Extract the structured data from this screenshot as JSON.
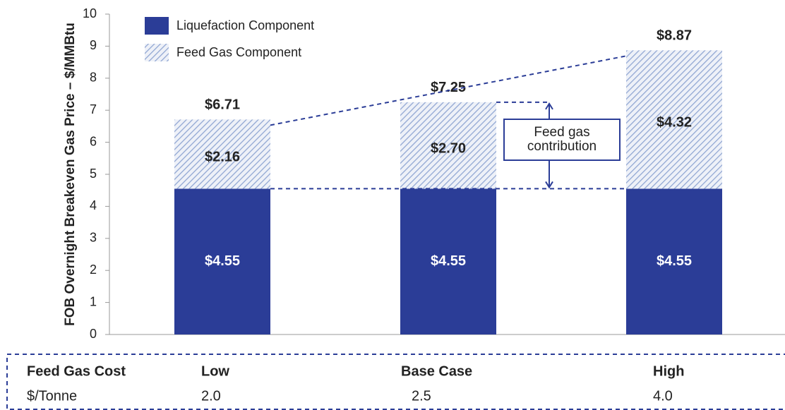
{
  "chart_data": {
    "type": "stacked_bar",
    "y_label": "FOB Overnight Breakeven Gas Price – $/MMBtu",
    "categories": [
      "Low",
      "Base Case",
      "High"
    ],
    "series": [
      {
        "name": "Liquefaction Component",
        "color": "#2b3d97",
        "values": [
          4.55,
          4.55,
          4.55
        ],
        "value_labels": [
          "$4.55",
          "$4.55",
          "$4.55"
        ]
      },
      {
        "name": "Feed Gas Component",
        "color": "#8fa5d2",
        "values": [
          2.16,
          2.7,
          4.32
        ],
        "value_labels": [
          "$2.16",
          "$2.70",
          "$4.32"
        ]
      }
    ],
    "totals": {
      "values": [
        6.71,
        7.25,
        8.87
      ],
      "value_labels": [
        "$6.71",
        "$7.25",
        "$8.87"
      ]
    },
    "annotation": "Feed gas contribution",
    "ylim": [
      0,
      10
    ],
    "yticks": [
      0,
      1,
      2,
      3,
      4,
      5,
      6,
      7,
      8,
      9,
      10
    ],
    "table": {
      "header": "Feed Gas Cost",
      "unit_label": "$/Tonne",
      "costs": [
        "2.0",
        "2.5",
        "4.0"
      ]
    }
  }
}
